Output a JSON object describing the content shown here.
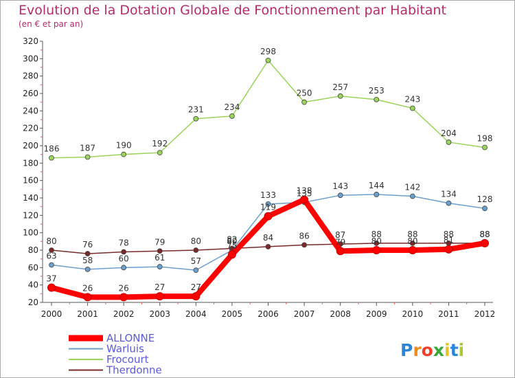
{
  "title": "Evolution de la Dotation Globale de Fonctionnement par Habitant",
  "subtitle": "(en € et par an)",
  "logo": {
    "text": "Proxiti"
  },
  "chart_data": {
    "type": "line",
    "x": [
      "2000",
      "2001",
      "2002",
      "2003",
      "2004",
      "2005",
      "2006",
      "2007",
      "2008",
      "2009",
      "2010",
      "2011",
      "2012"
    ],
    "ylim": [
      20,
      320
    ],
    "yticks": [
      20,
      40,
      60,
      80,
      100,
      120,
      140,
      160,
      180,
      200,
      220,
      240,
      260,
      280,
      300,
      320
    ],
    "grid": false,
    "legend_position": "bottom-left",
    "series": [
      {
        "name": "ALLONNE",
        "color": "#ff0000",
        "values": [
          37,
          26,
          26,
          27,
          27,
          75,
          119,
          138,
          79,
          80,
          80,
          81,
          88
        ]
      },
      {
        "name": "Warluis",
        "color": "#6b9fcd",
        "values": [
          63,
          58,
          60,
          61,
          57,
          80,
          133,
          135,
          143,
          144,
          142,
          134,
          128
        ]
      },
      {
        "name": "Frocourt",
        "color": "#9ad45a",
        "values": [
          186,
          187,
          190,
          192,
          231,
          234,
          298,
          250,
          257,
          253,
          243,
          204,
          198
        ]
      },
      {
        "name": "Therdonne",
        "color": "#7a2a2a",
        "values": [
          80,
          76,
          78,
          79,
          80,
          82,
          84,
          86,
          87,
          88,
          88,
          88,
          88
        ]
      }
    ]
  }
}
